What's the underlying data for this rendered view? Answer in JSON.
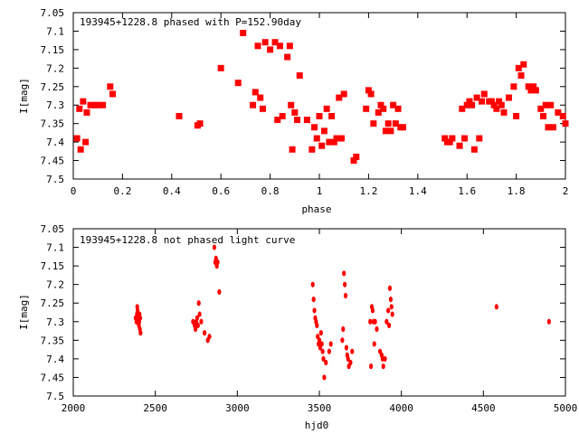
{
  "chart_data": [
    {
      "type": "scatter",
      "title": "193945+1228.8 phased with P=152.90day",
      "xlabel": "phase",
      "ylabel": "I[mag]",
      "xlim": [
        0,
        2
      ],
      "ylim": [
        7.5,
        7.05
      ],
      "y_inverted": true,
      "xticks": [
        "0",
        "0.2",
        "0.4",
        "0.6",
        "0.8",
        "1",
        "1.2",
        "1.4",
        "1.6",
        "1.8",
        "2"
      ],
      "yticks": [
        "7.05",
        "7.1",
        "7.15",
        "7.2",
        "7.25",
        "7.3",
        "7.35",
        "7.4",
        "7.45",
        "7.5"
      ],
      "grid": false,
      "marker_color": "#ff0000",
      "series": [
        {
          "x": [
            0.015,
            0.025,
            0.03,
            0.04,
            0.05,
            0.055,
            0.07,
            0.085,
            0.1,
            0.12,
            0.15,
            0.16,
            0.43,
            0.505,
            0.515,
            0.6,
            0.67,
            0.69,
            0.73,
            0.74,
            0.75,
            0.76,
            0.77,
            0.78,
            0.8,
            0.82,
            0.83,
            0.84,
            0.85,
            0.87,
            0.88,
            0.885,
            0.89,
            0.9,
            0.91,
            0.92,
            0.95,
            0.97,
            0.98,
            0.99,
            1.0,
            1.01,
            1.02,
            1.03,
            1.04,
            1.05,
            1.06,
            1.07,
            1.08,
            1.09,
            1.1,
            1.14,
            1.15,
            1.19,
            1.2,
            1.21,
            1.22,
            1.24,
            1.25,
            1.26,
            1.27,
            1.28,
            1.29,
            1.3,
            1.31,
            1.32,
            1.33,
            1.34,
            1.51,
            1.52,
            1.53,
            1.54,
            1.57,
            1.58,
            1.59,
            1.6,
            1.61,
            1.62,
            1.63,
            1.64,
            1.65,
            1.66,
            1.67,
            1.69,
            1.7,
            1.71,
            1.72,
            1.73,
            1.74,
            1.75,
            1.77,
            1.79,
            1.8,
            1.81,
            1.82,
            1.83,
            1.85,
            1.86,
            1.87,
            1.88,
            1.9,
            1.91,
            1.92,
            1.93,
            1.94,
            1.95,
            1.97,
            1.99,
            2.0
          ],
          "y": [
            7.39,
            7.31,
            7.42,
            7.29,
            7.4,
            7.32,
            7.3,
            7.3,
            7.3,
            7.3,
            7.25,
            7.27,
            7.33,
            7.355,
            7.35,
            7.2,
            7.24,
            7.105,
            7.3,
            7.265,
            7.14,
            7.28,
            7.31,
            7.13,
            7.15,
            7.13,
            7.34,
            7.14,
            7.33,
            7.17,
            7.14,
            7.3,
            7.42,
            7.32,
            7.34,
            7.22,
            7.34,
            7.42,
            7.36,
            7.39,
            7.33,
            7.41,
            7.37,
            7.31,
            7.4,
            7.33,
            7.4,
            7.39,
            7.28,
            7.39,
            7.27,
            7.45,
            7.44,
            7.31,
            7.26,
            7.27,
            7.35,
            7.32,
            7.3,
            7.31,
            7.37,
            7.35,
            7.37,
            7.3,
            7.35,
            7.31,
            7.36,
            7.36,
            7.39,
            7.4,
            7.4,
            7.39,
            7.41,
            7.31,
            7.39,
            7.3,
            7.29,
            7.3,
            7.42,
            7.28,
            7.39,
            7.29,
            7.27,
            7.29,
            7.29,
            7.3,
            7.31,
            7.29,
            7.3,
            7.32,
            7.28,
            7.25,
            7.33,
            7.2,
            7.22,
            7.19,
            7.25,
            7.26,
            7.25,
            7.26,
            7.31,
            7.33,
            7.3,
            7.36,
            7.3,
            7.36,
            7.32,
            7.33,
            7.35
          ]
        }
      ]
    },
    {
      "type": "scatter",
      "title": "193945+1228.8 not phased light curve",
      "xlabel": "hjd0",
      "ylabel": "I[mag]",
      "xlim": [
        2000,
        5000
      ],
      "ylim": [
        7.5,
        7.05
      ],
      "y_inverted": true,
      "xticks": [
        "2000",
        "2500",
        "3000",
        "3500",
        "4000",
        "4500",
        "5000"
      ],
      "yticks": [
        "7.05",
        "7.1",
        "7.15",
        "7.2",
        "7.25",
        "7.3",
        "7.35",
        "7.4",
        "7.45",
        "7.5"
      ],
      "grid": false,
      "marker_color": "#ff0000",
      "series": [
        {
          "x": [
            2380,
            2385,
            2388,
            2390,
            2392,
            2394,
            2396,
            2398,
            2400,
            2402,
            2404,
            2406,
            2408,
            2410,
            2730,
            2740,
            2745,
            2750,
            2755,
            2760,
            2765,
            2770,
            2780,
            2800,
            2820,
            2830,
            2860,
            2865,
            2870,
            2875,
            2880,
            2890,
            3460,
            3465,
            3470,
            3475,
            3480,
            3485,
            3490,
            3495,
            3500,
            3505,
            3510,
            3515,
            3520,
            3525,
            3530,
            3540,
            3560,
            3570,
            3640,
            3645,
            3650,
            3655,
            3660,
            3665,
            3670,
            3675,
            3680,
            3690,
            3700,
            3810,
            3815,
            3820,
            3825,
            3830,
            3835,
            3840,
            3850,
            3870,
            3880,
            3885,
            3890,
            3900,
            3910,
            3920,
            3925,
            3930,
            3935,
            3940,
            3945,
            4580,
            4900
          ],
          "y": [
            7.29,
            7.3,
            7.28,
            7.26,
            7.27,
            7.3,
            7.29,
            7.28,
            7.31,
            7.3,
            7.28,
            7.32,
            7.29,
            7.33,
            7.3,
            7.31,
            7.32,
            7.3,
            7.29,
            7.31,
            7.25,
            7.28,
            7.3,
            7.33,
            7.35,
            7.34,
            7.1,
            7.14,
            7.13,
            7.15,
            7.14,
            7.22,
            7.2,
            7.24,
            7.27,
            7.29,
            7.3,
            7.31,
            7.34,
            7.36,
            7.35,
            7.37,
            7.33,
            7.36,
            7.38,
            7.4,
            7.45,
            7.41,
            7.38,
            7.36,
            7.35,
            7.32,
            7.17,
            7.2,
            7.23,
            7.37,
            7.39,
            7.4,
            7.42,
            7.41,
            7.38,
            7.3,
            7.42,
            7.26,
            7.27,
            7.3,
            7.36,
            7.3,
            7.32,
            7.38,
            7.39,
            7.4,
            7.42,
            7.4,
            7.3,
            7.27,
            7.31,
            7.21,
            7.24,
            7.26,
            7.28,
            7.26,
            7.3
          ]
        }
      ]
    }
  ]
}
